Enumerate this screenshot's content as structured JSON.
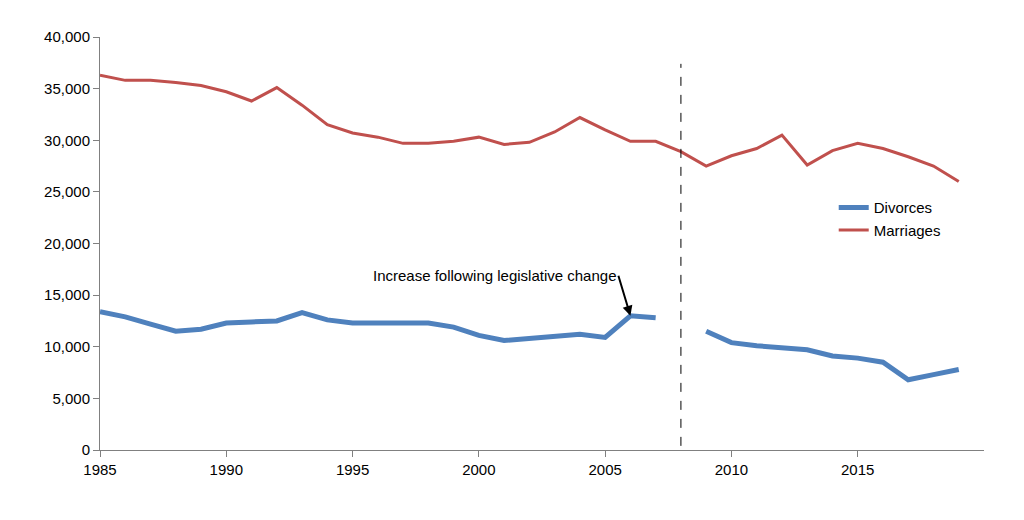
{
  "chart_data": {
    "type": "line",
    "x": [
      1985,
      1986,
      1987,
      1988,
      1989,
      1990,
      1991,
      1992,
      1993,
      1994,
      1995,
      1996,
      1997,
      1998,
      1999,
      2000,
      2001,
      2002,
      2003,
      2004,
      2005,
      2006,
      2007,
      2008,
      2009,
      2010,
      2011,
      2012,
      2013,
      2014,
      2015,
      2016,
      2017,
      2018,
      2019
    ],
    "series": [
      {
        "name": "Divorces",
        "color": "#4f81bd",
        "values": [
          13400,
          12900,
          12200,
          11500,
          11700,
          12300,
          12400,
          12500,
          13300,
          12600,
          12300,
          12300,
          12200,
          12300,
          11900,
          11100,
          10600,
          10800,
          10900,
          11200,
          10900,
          13000,
          12800,
          null,
          11500,
          10400,
          10100,
          9900,
          9700,
          9100,
          8900,
          8500,
          6800,
          7300,
          7800
        ]
      },
      {
        "name": "Marriages",
        "color": "#c0504d",
        "values": [
          36300,
          35800,
          35800,
          35600,
          35300,
          34700,
          33800,
          35100,
          33400,
          31500,
          30700,
          30300,
          29700,
          29700,
          29900,
          30300,
          29600,
          29800,
          30800,
          32200,
          31000,
          29900,
          29900,
          28900,
          27500,
          28500,
          29200,
          30500,
          27600,
          29000,
          29700,
          29200,
          28400,
          27500,
          26000
        ]
      }
    ],
    "xlim": [
      1985,
      2020
    ],
    "xticks": [
      1985,
      1990,
      1995,
      2000,
      2005,
      2010,
      2015
    ],
    "ylim": [
      0,
      40000
    ],
    "yticks": [
      0,
      {
        "value": 5000,
        "label": "5,000"
      },
      {
        "value": 10000,
        "label": "10,000"
      },
      {
        "value": 15000,
        "label": "15,000"
      },
      {
        "value": 20000,
        "label": "20,000"
      },
      {
        "value": 25000,
        "label": "25,000"
      },
      {
        "value": 30000,
        "label": "30,000"
      },
      {
        "value": 35000,
        "label": "35,000"
      },
      {
        "value": 40000,
        "label": "40,000"
      }
    ],
    "series_break": 2008,
    "annotations": [
      {
        "text": "Increase following legislative change",
        "x": 2006,
        "y": 13000
      }
    ],
    "grid": false,
    "legend": "right"
  }
}
